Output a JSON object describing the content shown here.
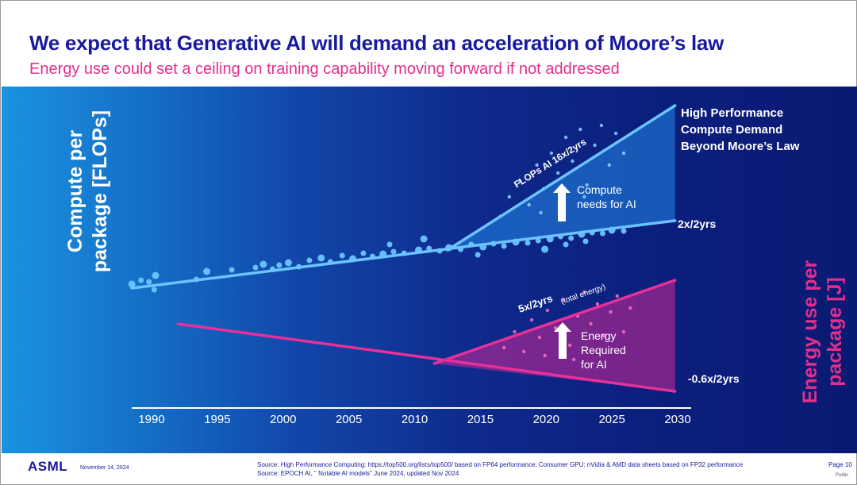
{
  "slide": {
    "title": "We expect that Generative AI will demand an acceleration of Moore’s law",
    "subtitle": "Energy use could set a ceiling on training capability moving forward if not addressed",
    "footer": {
      "logo": "ASML",
      "date": "November 14, 2024",
      "source_line1": "Source: High Performance Computing: https://top500.org/lists/top500/ based on FP64 performance; Consumer GPU: nVidia & AMD data sheets based on FP32 performance",
      "source_line2": "Source: EPOCH AI, \" Notable AI models\" June 2024, updated Nov 2024",
      "page": "Page 10",
      "classification": "Public"
    }
  },
  "chart_data": {
    "type": "scatter",
    "x_axis": {
      "range": [
        1988,
        2031
      ],
      "ticks": [
        1990,
        1995,
        2000,
        2005,
        2010,
        2015,
        2020,
        2025,
        2030
      ]
    },
    "y_left_label": "Compute per package [FLOPs]",
    "y_right_label": "Energy use per package [J]",
    "colors": {
      "compute": "#6cc4ff",
      "energy": "#e8309a",
      "label": "#ffffff"
    },
    "lines": [
      {
        "key": "moore",
        "label": "2x/2yrs",
        "from": [
          1988.5,
          0.0
        ],
        "to": [
          2029.8,
          0.85
        ],
        "color": "#6cc4ff"
      },
      {
        "key": "ai_flops",
        "label": "FLOPs AI 16x/2yrs",
        "from": [
          2012.5,
          0.48
        ],
        "to": [
          2029.8,
          2.3
        ],
        "color": "#6cc4ff"
      },
      {
        "key": "energy_trend",
        "label": "-0.6x/2yrs",
        "from": [
          1992,
          -0.45
        ],
        "to": [
          2029.8,
          -1.3
        ],
        "color": "#e8309a"
      },
      {
        "key": "energy_ai",
        "label": "5x/2yrs",
        "from": [
          2011.5,
          -0.95
        ],
        "to": [
          2029.8,
          0.1
        ],
        "color": "#e8309a"
      }
    ],
    "annotations": {
      "hpc_demand": "High Performance Compute Demand Beyond Moore’s Law",
      "compute_needs": "Compute needs for AI",
      "energy_required": "Energy Required for AI",
      "total_energy": "(total energy)"
    },
    "series": [
      {
        "name": "Compute per package",
        "points": [
          [
            1988.5,
            0.05
          ],
          [
            1989.2,
            0.1
          ],
          [
            1989.8,
            0.08
          ],
          [
            1990.3,
            0.16
          ],
          [
            1990.2,
            -0.02
          ],
          [
            1993.4,
            0.11
          ],
          [
            1994.2,
            0.21
          ],
          [
            1996.1,
            0.23
          ],
          [
            1997.9,
            0.26
          ],
          [
            1998.5,
            0.3
          ],
          [
            1999.2,
            0.24
          ],
          [
            1999.7,
            0.29
          ],
          [
            2000.4,
            0.32
          ],
          [
            2001.2,
            0.27
          ],
          [
            2002.0,
            0.35
          ],
          [
            2002.9,
            0.38
          ],
          [
            2003.6,
            0.33
          ],
          [
            2004.5,
            0.41
          ],
          [
            2005.3,
            0.37
          ],
          [
            2006.1,
            0.44
          ],
          [
            2006.8,
            0.4
          ],
          [
            2007.6,
            0.43
          ],
          [
            2008.4,
            0.46
          ],
          [
            2009.2,
            0.44
          ],
          [
            2010.3,
            0.48
          ],
          [
            2011.1,
            0.5
          ],
          [
            2011.9,
            0.47
          ],
          [
            2012.6,
            0.51
          ],
          [
            2013.5,
            0.49
          ],
          [
            2014.3,
            0.55
          ],
          [
            2015.2,
            0.52
          ],
          [
            2016.0,
            0.56
          ],
          [
            2016.8,
            0.53
          ],
          [
            2017.7,
            0.58
          ],
          [
            2018.6,
            0.57
          ],
          [
            2019.4,
            0.6
          ],
          [
            2020.3,
            0.62
          ],
          [
            2021.1,
            0.65
          ],
          [
            2021.9,
            0.63
          ],
          [
            2022.7,
            0.68
          ],
          [
            2023.5,
            0.7
          ],
          [
            2024.3,
            0.69
          ],
          [
            2025.0,
            0.73
          ],
          [
            2025.9,
            0.72
          ],
          [
            2014.8,
            0.42
          ],
          [
            2019.9,
            0.49
          ],
          [
            2021.5,
            0.55
          ],
          [
            2023.0,
            0.59
          ],
          [
            2010.7,
            0.62
          ],
          [
            2008.1,
            0.55
          ]
        ]
      },
      {
        "name": "Compute needs for AI",
        "points": [
          [
            2016.5,
            0.9
          ],
          [
            2017.2,
            1.15
          ],
          [
            2018.0,
            1.35
          ],
          [
            2018.7,
            1.05
          ],
          [
            2019.3,
            1.55
          ],
          [
            2019.8,
            1.25
          ],
          [
            2020.4,
            1.7
          ],
          [
            2020.9,
            1.45
          ],
          [
            2021.5,
            1.9
          ],
          [
            2022.0,
            1.6
          ],
          [
            2022.6,
            2.0
          ],
          [
            2023.1,
            1.3
          ],
          [
            2023.7,
            1.8
          ],
          [
            2024.2,
            2.05
          ],
          [
            2024.8,
            1.55
          ],
          [
            2025.3,
            1.95
          ],
          [
            2025.9,
            1.7
          ],
          [
            2021.2,
            1.05
          ],
          [
            2022.9,
            1.15
          ],
          [
            2019.6,
            0.95
          ]
        ]
      },
      {
        "name": "Energy use per package",
        "points": [
          [
            2016.8,
            -0.75
          ],
          [
            2017.6,
            -0.55
          ],
          [
            2018.3,
            -0.8
          ],
          [
            2018.9,
            -0.4
          ],
          [
            2019.5,
            -0.62
          ],
          [
            2020.1,
            -0.28
          ],
          [
            2020.7,
            -0.5
          ],
          [
            2021.3,
            -0.15
          ],
          [
            2021.8,
            -0.72
          ],
          [
            2022.4,
            -0.35
          ],
          [
            2022.9,
            -0.05
          ],
          [
            2023.4,
            -0.45
          ],
          [
            2023.9,
            -0.2
          ],
          [
            2024.4,
            -0.6
          ],
          [
            2024.9,
            -0.3
          ],
          [
            2025.4,
            -0.1
          ],
          [
            2025.9,
            -0.55
          ],
          [
            2026.4,
            -0.25
          ],
          [
            2019.9,
            -0.85
          ],
          [
            2022.1,
            -0.9
          ]
        ]
      }
    ]
  }
}
